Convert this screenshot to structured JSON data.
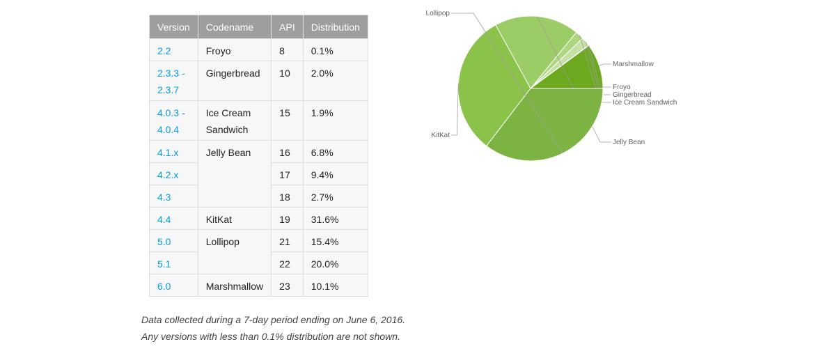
{
  "table": {
    "headers": [
      "Version",
      "Codename",
      "API",
      "Distribution"
    ],
    "rows": [
      {
        "version": "2.2",
        "codename": "Froyo",
        "api": "8",
        "dist": "0.1%"
      },
      {
        "version": "2.3.3 -\n2.3.7",
        "codename": "Gingerbread",
        "api": "10",
        "dist": "2.0%"
      },
      {
        "version": "4.0.3 -\n4.0.4",
        "codename": "Ice Cream\nSandwich",
        "api": "15",
        "dist": "1.9%"
      },
      {
        "version": "4.1.x",
        "codename": "Jelly Bean",
        "api": "16",
        "dist": "6.8%"
      },
      {
        "version": "4.2.x",
        "codename": "",
        "api": "17",
        "dist": "9.4%"
      },
      {
        "version": "4.3",
        "codename": "",
        "api": "18",
        "dist": "2.7%"
      },
      {
        "version": "4.4",
        "codename": "KitKat",
        "api": "19",
        "dist": "31.6%"
      },
      {
        "version": "5.0",
        "codename": "Lollipop",
        "api": "21",
        "dist": "15.4%"
      },
      {
        "version": "5.1",
        "codename": "",
        "api": "22",
        "dist": "20.0%"
      },
      {
        "version": "6.0",
        "codename": "Marshmallow",
        "api": "23",
        "dist": "10.1%"
      }
    ]
  },
  "notes": {
    "line1": "Data collected during a 7-day period ending on June 6, 2016.",
    "line2": "Any versions with less than 0.1% distribution are not shown."
  },
  "chart_data": {
    "type": "pie",
    "slices": [
      {
        "label": "Marshmallow",
        "value": 10.1,
        "color": "#6ca91e"
      },
      {
        "label": "Froyo",
        "value": 0.1,
        "color": "#c5e1a5"
      },
      {
        "label": "Gingerbread",
        "value": 2.0,
        "color": "#c5e1a5"
      },
      {
        "label": "Ice Cream Sandwich",
        "value": 1.9,
        "color": "#aed581"
      },
      {
        "label": "Jelly Bean",
        "value": 18.9,
        "color": "#9ccc65"
      },
      {
        "label": "KitKat",
        "value": 31.6,
        "color": "#8bc34a"
      },
      {
        "label": "Lollipop",
        "value": 35.4,
        "color": "#7cb342"
      }
    ]
  }
}
